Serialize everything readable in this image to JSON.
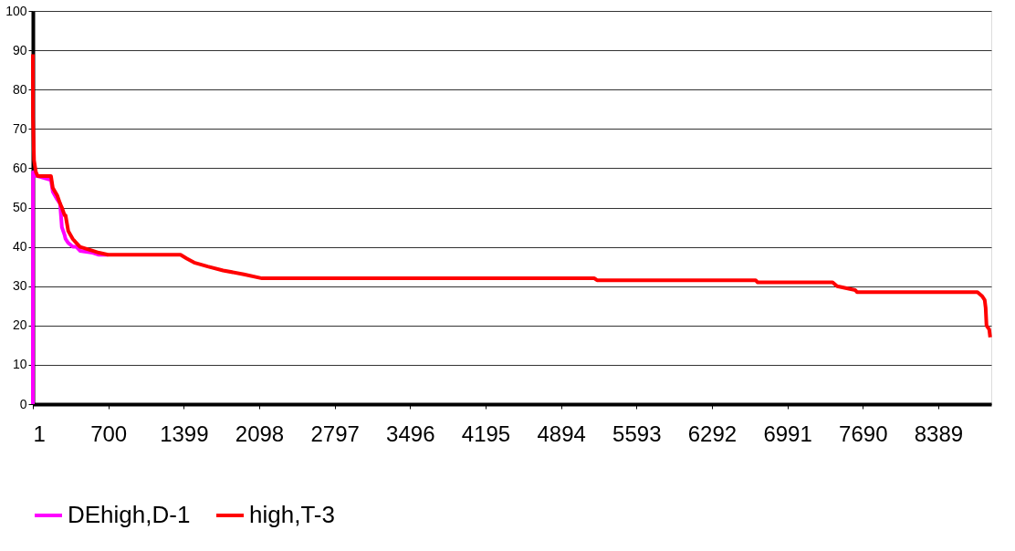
{
  "chart_data": {
    "type": "line",
    "x": [
      1,
      2,
      12,
      29,
      46,
      169,
      186,
      228,
      253,
      270,
      295,
      304,
      329,
      371,
      404,
      438,
      555,
      613,
      697,
      1369,
      1428,
      1495,
      1621,
      1763,
      1956,
      2124,
      5203,
      5228,
      6697,
      6714,
      7410,
      7452,
      7620,
      7636,
      8752,
      8794,
      8819,
      8828,
      8836,
      8861,
      8870
    ],
    "series": [
      {
        "name": "DEhigh,D-1",
        "color": "#ff00ff",
        "values": [
          0,
          59,
          59,
          58,
          58,
          57,
          54,
          52,
          51,
          45,
          43,
          42,
          41,
          40,
          40,
          39,
          38.5,
          38,
          38,
          null,
          null,
          null,
          null,
          null,
          null,
          null,
          null,
          null,
          null,
          null,
          null,
          null,
          null,
          null,
          null,
          null,
          null,
          null,
          null,
          null,
          null
        ]
      },
      {
        "name": "high,T-3",
        "color": "#ff0000",
        "values": [
          89,
          73,
          62,
          59,
          58,
          58,
          55,
          53,
          51,
          50,
          48,
          48,
          44,
          42,
          41,
          40,
          39,
          38.5,
          38,
          38,
          37,
          36,
          35,
          34,
          33,
          32,
          32,
          31.5,
          31.5,
          31,
          31,
          30,
          29,
          28.5,
          28.5,
          27.5,
          26.5,
          24.5,
          20,
          19,
          17
        ]
      }
    ],
    "xlim": [
      1,
      8880
    ],
    "xticks": [
      1,
      700,
      1399,
      2098,
      2797,
      3496,
      4195,
      4894,
      5593,
      6292,
      6991,
      7690,
      8389
    ],
    "ylim": [
      0,
      100
    ],
    "yticks": [
      0,
      10,
      20,
      30,
      40,
      50,
      60,
      70,
      80,
      90,
      100
    ],
    "grid": "y",
    "legend": "bottom",
    "marker": "none",
    "line_style": "solid"
  }
}
